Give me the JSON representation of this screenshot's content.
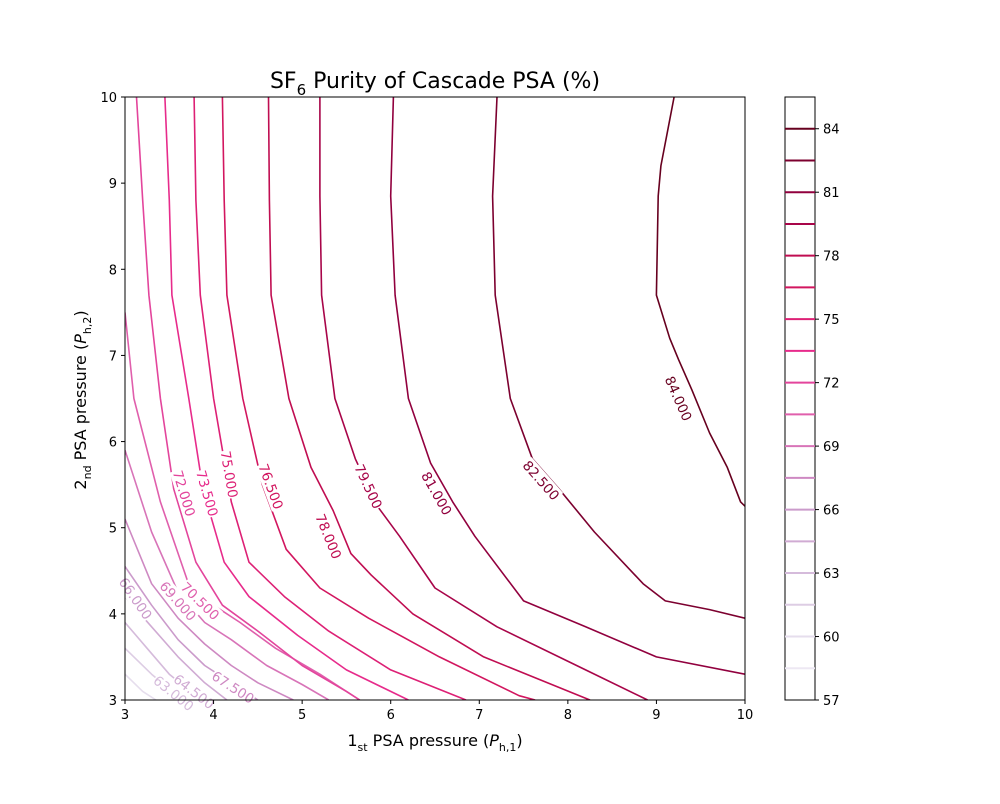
{
  "chart_data": {
    "type": "contour",
    "title": "SF6 Purity of Cascade PSA (%)",
    "title_parts": {
      "base": "SF",
      "sub": "6",
      "rest": " Purity of Cascade PSA (%)"
    },
    "xlabel": "1st PSA pressure (Ph,1)",
    "xlabel_parts": {
      "base": "1",
      "sub": "st",
      "rest": " PSA pressure (",
      "var": "P",
      "var_sub": "h,1",
      "end": ")"
    },
    "ylabel": "2nd PSA pressure (Ph,2)",
    "ylabel_parts": {
      "base": "2",
      "sub": "nd",
      "rest": " PSA pressure (",
      "var": "P",
      "var_sub": "h,2",
      "end": ")"
    },
    "xlim": [
      3,
      10
    ],
    "ylim": [
      3,
      10
    ],
    "xticks": [
      "3",
      "4",
      "5",
      "6",
      "7",
      "8",
      "9",
      "10"
    ],
    "yticks": [
      "3",
      "4",
      "5",
      "6",
      "7",
      "8",
      "9",
      "10"
    ],
    "grid": false,
    "colorbar": {
      "range": [
        57,
        85.5
      ],
      "levels": [
        58.5,
        60,
        61.5,
        63,
        64.5,
        66,
        67.5,
        69,
        70.5,
        72,
        73.5,
        75,
        76.5,
        78,
        79.5,
        81,
        82.5,
        84
      ],
      "tick_labels": [
        "57",
        "60",
        "63",
        "66",
        "69",
        "72",
        "75",
        "78",
        "81",
        "84"
      ],
      "colormap": "PuRd"
    },
    "contours": [
      {
        "level": 58.5,
        "points": [
          [
            3.0,
            3.0
          ],
          [
            3.0,
            3.0
          ]
        ]
      },
      {
        "level": 60.0,
        "points": [
          [
            3.0,
            3.3
          ],
          [
            3.2,
            3.1
          ],
          [
            3.35,
            3.0
          ]
        ]
      },
      {
        "level": 61.5,
        "points": [
          [
            3.0,
            3.6
          ],
          [
            3.3,
            3.3
          ],
          [
            3.65,
            3.0
          ]
        ]
      },
      {
        "level": 63.0,
        "points": [
          [
            3.0,
            3.9
          ],
          [
            3.25,
            3.6
          ],
          [
            3.5,
            3.3
          ],
          [
            3.8,
            3.05
          ],
          [
            3.9,
            3.0
          ]
        ]
      },
      {
        "level": 64.5,
        "points": [
          [
            3.0,
            4.2
          ],
          [
            3.3,
            3.85
          ],
          [
            3.6,
            3.5
          ],
          [
            3.9,
            3.2
          ],
          [
            4.15,
            3.0
          ]
        ]
      },
      {
        "level": 66.0,
        "points": [
          [
            3.0,
            4.55
          ],
          [
            3.3,
            4.1
          ],
          [
            3.6,
            3.7
          ],
          [
            3.9,
            3.4
          ],
          [
            4.2,
            3.2
          ],
          [
            4.5,
            3.0
          ]
        ]
      },
      {
        "level": 67.5,
        "points": [
          [
            3.0,
            5.1
          ],
          [
            3.3,
            4.35
          ],
          [
            3.6,
            3.95
          ],
          [
            3.9,
            3.65
          ],
          [
            4.2,
            3.4
          ],
          [
            4.5,
            3.2
          ],
          [
            4.9,
            3.0
          ]
        ]
      },
      {
        "level": 69.0,
        "points": [
          [
            3.0,
            5.9
          ],
          [
            3.3,
            4.95
          ],
          [
            3.6,
            4.25
          ],
          [
            3.9,
            3.9
          ],
          [
            4.2,
            3.7
          ],
          [
            4.6,
            3.4
          ],
          [
            5.0,
            3.18
          ],
          [
            5.3,
            3.0
          ]
        ]
      },
      {
        "level": 70.5,
        "points": [
          [
            3.0,
            7.5
          ],
          [
            3.1,
            6.5
          ],
          [
            3.4,
            5.3
          ],
          [
            3.7,
            4.4
          ],
          [
            4.0,
            4.1
          ],
          [
            4.3,
            3.9
          ],
          [
            4.7,
            3.6
          ],
          [
            5.2,
            3.3
          ],
          [
            5.65,
            3.0
          ]
        ]
      },
      {
        "level": 72.0,
        "points": [
          [
            3.13,
            10.0
          ],
          [
            3.2,
            8.8
          ],
          [
            3.27,
            7.7
          ],
          [
            3.4,
            6.5
          ],
          [
            3.55,
            5.45
          ],
          [
            3.8,
            4.6
          ],
          [
            4.1,
            4.1
          ],
          [
            4.5,
            3.8
          ],
          [
            5.0,
            3.4
          ],
          [
            5.5,
            3.1
          ],
          [
            5.65,
            3.0
          ]
        ]
      },
      {
        "level": 73.5,
        "points": [
          [
            3.45,
            10.0
          ],
          [
            3.5,
            8.8
          ],
          [
            3.53,
            7.7
          ],
          [
            3.72,
            6.5
          ],
          [
            3.88,
            5.45
          ],
          [
            4.12,
            4.6
          ],
          [
            4.4,
            4.2
          ],
          [
            4.95,
            3.75
          ],
          [
            5.5,
            3.35
          ],
          [
            6.2,
            3.0
          ]
        ]
      },
      {
        "level": 75.0,
        "points": [
          [
            3.78,
            10.0
          ],
          [
            3.8,
            8.8
          ],
          [
            3.85,
            7.7
          ],
          [
            4.0,
            6.5
          ],
          [
            4.2,
            5.3
          ],
          [
            4.4,
            4.6
          ],
          [
            4.8,
            4.2
          ],
          [
            5.3,
            3.8
          ],
          [
            6.0,
            3.35
          ],
          [
            6.85,
            3.0
          ]
        ]
      },
      {
        "level": 76.5,
        "points": [
          [
            4.1,
            10.0
          ],
          [
            4.12,
            8.8
          ],
          [
            4.15,
            7.7
          ],
          [
            4.33,
            6.5
          ],
          [
            4.55,
            5.5
          ],
          [
            4.82,
            4.75
          ],
          [
            5.2,
            4.3
          ],
          [
            5.75,
            3.95
          ],
          [
            6.55,
            3.5
          ],
          [
            7.45,
            3.05
          ],
          [
            7.63,
            3.0
          ]
        ]
      },
      {
        "level": 78.0,
        "points": [
          [
            4.62,
            10.0
          ],
          [
            4.63,
            8.8
          ],
          [
            4.65,
            7.7
          ],
          [
            4.85,
            6.5
          ],
          [
            5.1,
            5.7
          ],
          [
            5.35,
            5.2
          ],
          [
            5.55,
            4.7
          ],
          [
            5.78,
            4.45
          ],
          [
            6.25,
            4.0
          ],
          [
            7.05,
            3.5
          ],
          [
            8.2,
            3.02
          ],
          [
            8.25,
            3.0
          ]
        ]
      },
      {
        "level": 79.5,
        "points": [
          [
            5.2,
            10.0
          ],
          [
            5.2,
            8.85
          ],
          [
            5.22,
            7.7
          ],
          [
            5.37,
            6.5
          ],
          [
            5.6,
            5.8
          ],
          [
            5.85,
            5.25
          ],
          [
            6.1,
            4.9
          ],
          [
            6.5,
            4.3
          ],
          [
            7.2,
            3.85
          ],
          [
            8.2,
            3.35
          ],
          [
            8.9,
            3.0
          ]
        ]
      },
      {
        "level": 81.0,
        "points": [
          [
            6.03,
            10.0
          ],
          [
            6.0,
            8.85
          ],
          [
            6.05,
            7.7
          ],
          [
            6.2,
            6.5
          ],
          [
            6.45,
            5.75
          ],
          [
            6.7,
            5.3
          ],
          [
            6.95,
            4.9
          ],
          [
            7.5,
            4.15
          ],
          [
            8.2,
            3.85
          ],
          [
            9.0,
            3.5
          ],
          [
            10.0,
            3.3
          ]
        ]
      },
      {
        "level": 82.5,
        "points": [
          [
            7.2,
            10.0
          ],
          [
            7.15,
            8.85
          ],
          [
            7.18,
            7.7
          ],
          [
            7.35,
            6.5
          ],
          [
            7.6,
            5.8
          ],
          [
            7.9,
            5.45
          ],
          [
            8.3,
            4.95
          ],
          [
            8.85,
            4.35
          ],
          [
            9.1,
            4.15
          ],
          [
            9.6,
            4.05
          ],
          [
            10.0,
            3.95
          ]
        ]
      },
      {
        "level": 84.0,
        "points": [
          [
            9.2,
            10.0
          ],
          [
            9.05,
            9.2
          ],
          [
            9.02,
            8.85
          ],
          [
            9.0,
            7.7
          ],
          [
            9.15,
            7.2
          ],
          [
            9.25,
            6.95
          ],
          [
            9.4,
            6.6
          ],
          [
            9.6,
            6.1
          ],
          [
            9.8,
            5.7
          ],
          [
            9.95,
            5.3
          ],
          [
            10.0,
            5.25
          ]
        ]
      }
    ],
    "contour_labels": [
      {
        "text": "84.000",
        "x": 9.25,
        "y": 6.5,
        "level": 84.0
      },
      {
        "text": "82.500",
        "x": 7.7,
        "y": 5.55,
        "level": 82.5
      },
      {
        "text": "81.000",
        "x": 6.52,
        "y": 5.4,
        "level": 81.0
      },
      {
        "text": "79.500",
        "x": 5.75,
        "y": 5.48,
        "level": 79.5
      },
      {
        "text": "78.000",
        "x": 5.3,
        "y": 4.9,
        "level": 78.0
      },
      {
        "text": "76.500",
        "x": 4.65,
        "y": 5.48,
        "level": 76.5
      },
      {
        "text": "75.000",
        "x": 4.18,
        "y": 5.62,
        "level": 75.0
      },
      {
        "text": "73.500",
        "x": 3.93,
        "y": 5.4,
        "level": 73.5
      },
      {
        "text": "72.000",
        "x": 3.67,
        "y": 5.4,
        "level": 72.0
      },
      {
        "text": "70.500",
        "x": 3.85,
        "y": 4.15,
        "level": 70.5
      },
      {
        "text": "69.000",
        "x": 3.6,
        "y": 4.15,
        "level": 69.0
      },
      {
        "text": "67.500",
        "x": 4.22,
        "y": 3.15,
        "level": 67.5
      },
      {
        "text": "66.000",
        "x": 3.12,
        "y": 4.18,
        "level": 66.0
      },
      {
        "text": "64.500",
        "x": 3.78,
        "y": 3.1,
        "level": 64.5
      },
      {
        "text": "63.000",
        "x": 3.55,
        "y": 3.08,
        "level": 63.0
      }
    ]
  }
}
